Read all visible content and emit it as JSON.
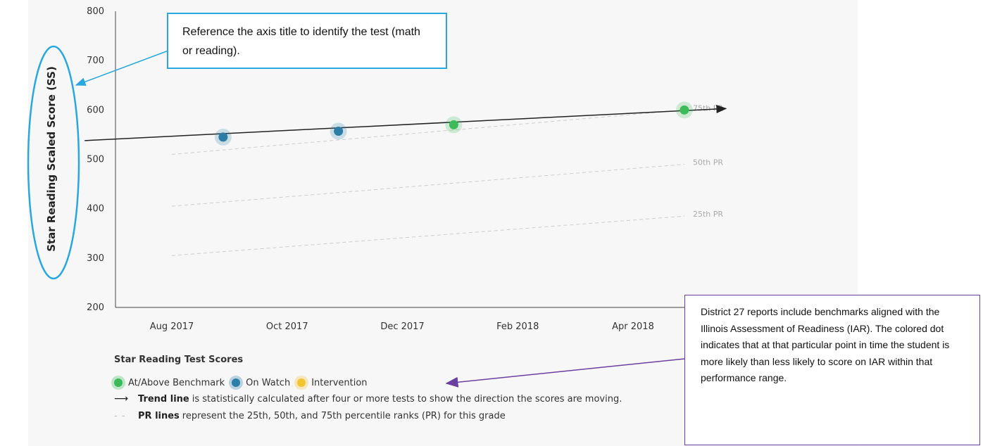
{
  "chart_data": {
    "type": "scatter",
    "ylabel": "Star Reading Scaled Score (SS)",
    "ylim": [
      200,
      800
    ],
    "yticks": [
      200,
      300,
      400,
      500,
      600,
      700,
      800
    ],
    "xtick_labels": [
      "Aug 2017",
      "Oct 2017",
      "Dec 2017",
      "Feb 2018",
      "Apr 2018"
    ],
    "points": [
      {
        "date": "Sep 2017",
        "value": 545,
        "status": "On Watch"
      },
      {
        "date": "Nov 2017",
        "value": 557,
        "status": "On Watch"
      },
      {
        "date": "Jan 2018",
        "value": 570,
        "status": "At/Above Benchmark"
      },
      {
        "date": "May 2018",
        "value": 600,
        "status": "At/Above Benchmark"
      }
    ],
    "trend_line": {
      "start": {
        "date": "Jul 2017",
        "value": 538
      },
      "end": {
        "date": "May 2018",
        "value": 600
      }
    },
    "pr_lines": [
      {
        "label": "75th PR",
        "start": 510,
        "end": 600
      },
      {
        "label": "50th PR",
        "start": 405,
        "end": 490
      },
      {
        "label": "25th PR",
        "start": 305,
        "end": 385
      }
    ],
    "colors": {
      "At/Above Benchmark": "#3dbb5a",
      "On Watch": "#2c7ea6",
      "Intervention": "#f2c531",
      "trend": "#222222",
      "pr": "#cccccc"
    }
  },
  "legend": {
    "title": "Star Reading Test Scores",
    "items": [
      {
        "label": "At/Above Benchmark",
        "color": "#3dbb5a"
      },
      {
        "label": "On Watch",
        "color": "#2c7ea6"
      },
      {
        "label": "Intervention",
        "color": "#f2c531"
      }
    ],
    "trend_bold": "Trend line",
    "trend_text": "is statistically calculated after four or more tests to show the direction the scores are moving.",
    "pr_bold": "PR lines",
    "pr_text": "represent the 25th, 50th, and 75th percentile ranks (PR) for this grade"
  },
  "callouts": {
    "axis_title": "Reference the axis title to identify the test (math or reading).",
    "iar": "District 27 reports include benchmarks aligned with the Illinois Assessment of Readiness (IAR).  The colored dot indicates that at that particular point in time the student is more likely than less likely to score on IAR within that performance range."
  },
  "annotation_colors": {
    "blue": "#29a8e0",
    "purple": "#6b3fa0"
  }
}
